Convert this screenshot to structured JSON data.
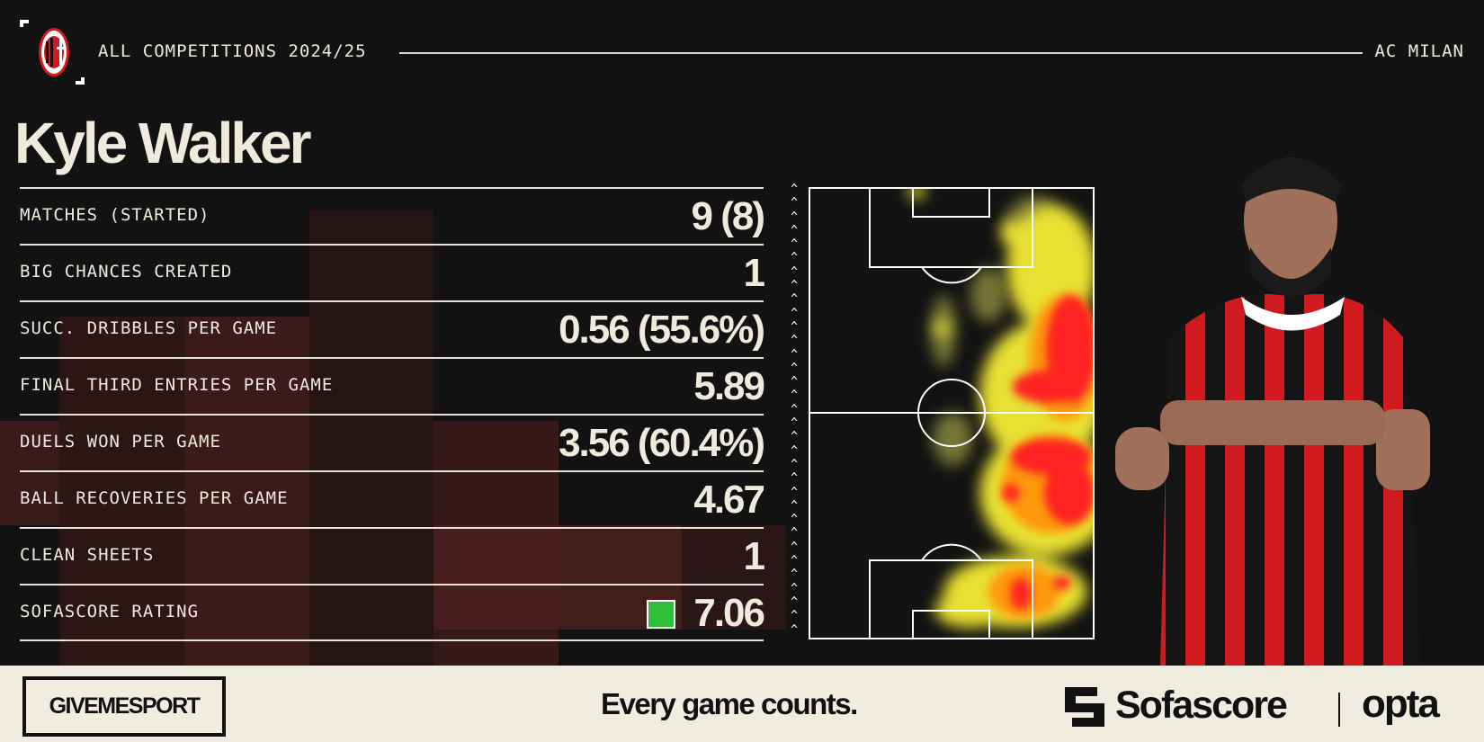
{
  "header": {
    "competition": "ALL COMPETITIONS 2024/25",
    "club": "AC MILAN",
    "club_logo": "ac-milan-crest"
  },
  "player": {
    "name": "Kyle Walker"
  },
  "stats": [
    {
      "label": "MATCHES (STARTED)",
      "value": "9 (8)"
    },
    {
      "label": "BIG CHANCES CREATED",
      "value": "1"
    },
    {
      "label": "SUCC. DRIBBLES PER GAME",
      "value": "0.56 (55.6%)"
    },
    {
      "label": "FINAL THIRD ENTRIES PER GAME",
      "value": "5.89"
    },
    {
      "label": "DUELS WON PER GAME",
      "value": "3.56 (60.4%)"
    },
    {
      "label": "BALL RECOVERIES PER GAME",
      "value": "4.67"
    },
    {
      "label": "CLEAN SHEETS",
      "value": "1"
    },
    {
      "label": "SOFASCORE RATING",
      "value": "7.06",
      "badge_color": "#2fbf3a"
    }
  ],
  "heatmap": {
    "direction_icon": "chevron-up",
    "colors": {
      "low": "#d8d840",
      "mid": "#ffd400",
      "high": "#ff2020"
    }
  },
  "footer": {
    "brand": "GIVEMESPORT",
    "tagline": "Every game counts.",
    "partner1": "Sofascore",
    "partner2": "opta"
  },
  "colors": {
    "background": "#121212",
    "text": "#efeadc",
    "footer": "#f0ece0",
    "milan_red": "#d01a20"
  }
}
